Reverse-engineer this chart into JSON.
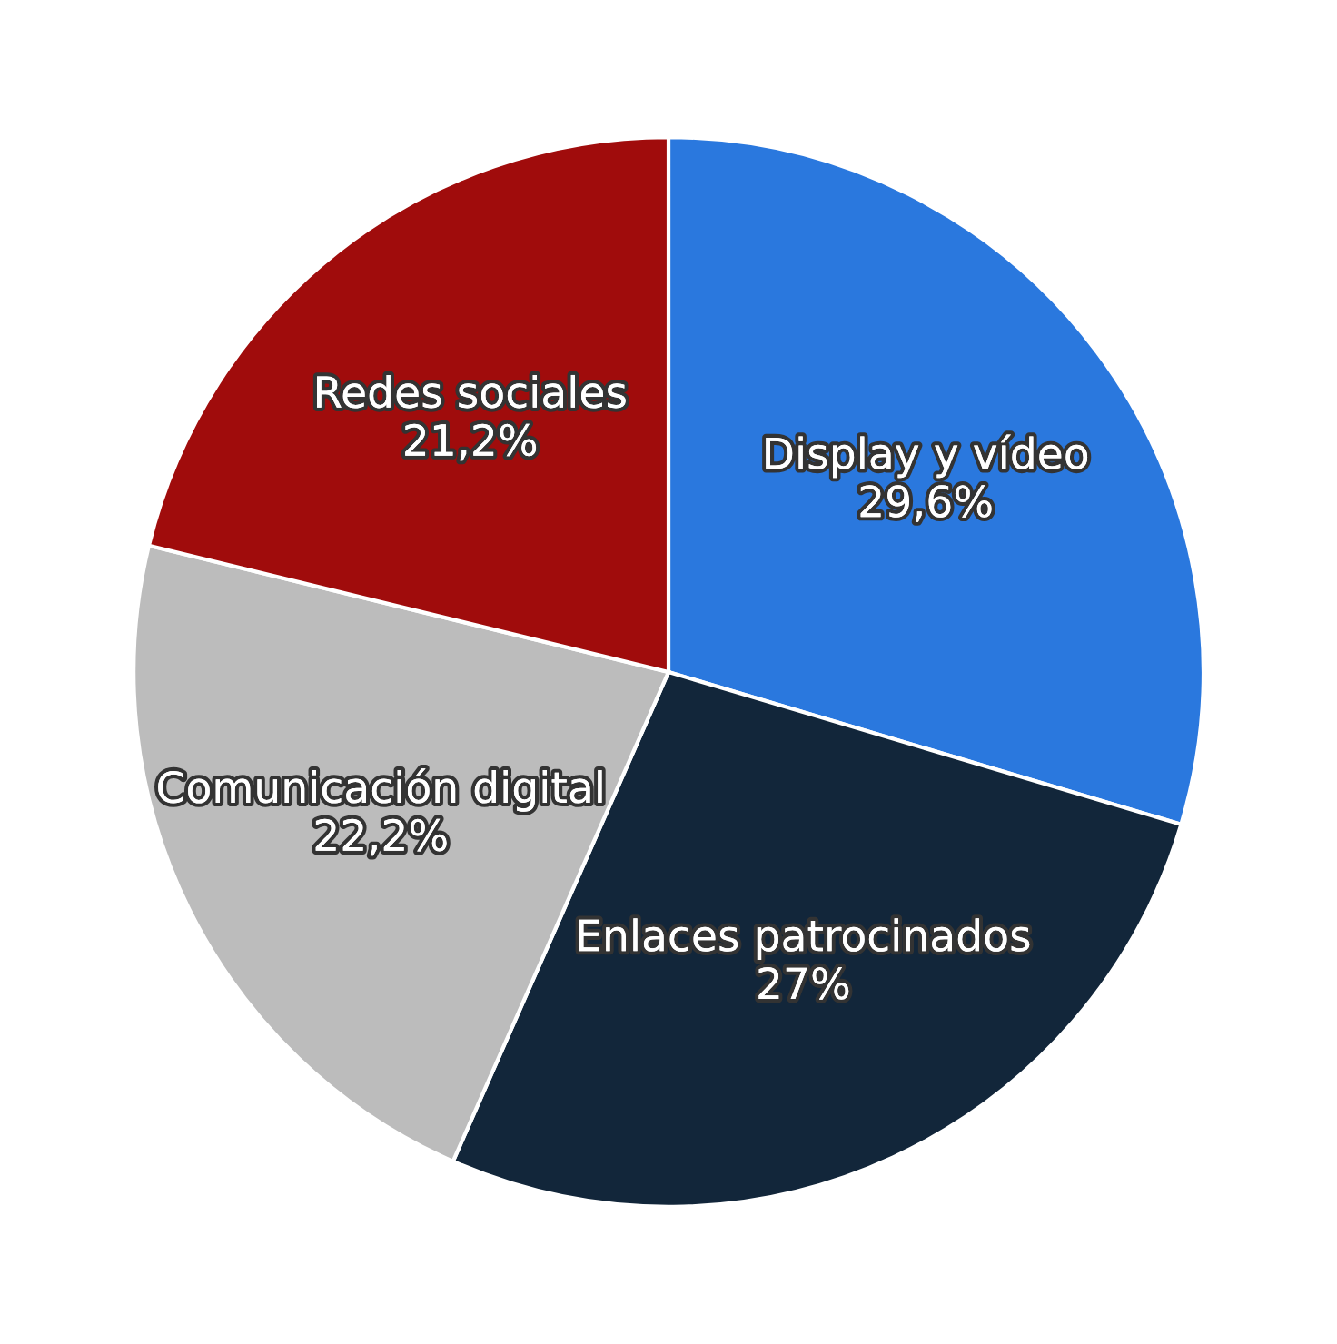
{
  "chart_data": {
    "type": "pie",
    "categories": [
      "Display y vídeo",
      "Enlaces patrocinados",
      "Comunicación digital",
      "Redes sociales"
    ],
    "values": [
      29.6,
      27,
      22.2,
      21.2
    ],
    "value_labels": [
      "29,6%",
      "27%",
      "22,2%",
      "21,2%"
    ],
    "colors": [
      "#2a78de",
      "#12263a",
      "#bcbcbc",
      "#a00c0c"
    ]
  }
}
